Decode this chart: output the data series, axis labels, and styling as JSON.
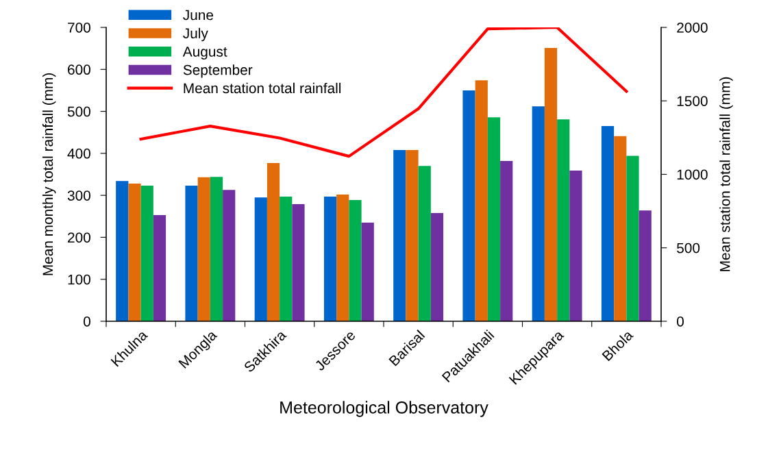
{
  "chart_data": {
    "type": "bar",
    "xlabel": "Meteorological Observatory",
    "ylabel": "Mean monthly total rainfall (mm)",
    "y2label": "Mean station total rainfall (mm)",
    "categories": [
      "Khulna",
      "Mongla",
      "Satkhira",
      "Jessore",
      "Barisal",
      "Patuakhali",
      "Khepupara",
      "Bhola"
    ],
    "series": [
      {
        "name": "June",
        "color": "#0066cc",
        "values": [
          334,
          323,
          295,
          297,
          408,
          550,
          512,
          465
        ]
      },
      {
        "name": "July",
        "color": "#e36c0a",
        "values": [
          328,
          343,
          377,
          302,
          408,
          574,
          651,
          441
        ]
      },
      {
        "name": "August",
        "color": "#00b050",
        "values": [
          323,
          344,
          297,
          289,
          370,
          486,
          481,
          394
        ]
      },
      {
        "name": "September",
        "color": "#7030a0",
        "values": [
          253,
          313,
          279,
          235,
          258,
          382,
          359,
          264
        ]
      },
      {
        "name": "Mean station total rainfall",
        "type": "line",
        "axis": "y2",
        "color": "#ff0000",
        "values": [
          1240,
          1328,
          1247,
          1123,
          1446,
          1990,
          2000,
          1565
        ]
      }
    ],
    "ylim": [
      0,
      700
    ],
    "yticks": [
      0,
      100,
      200,
      300,
      400,
      500,
      600,
      700
    ],
    "y2lim": [
      0,
      2000
    ],
    "y2ticks": [
      0,
      500,
      1000,
      1500,
      2000
    ],
    "grid": false,
    "legend": "top left",
    "marker": "none"
  }
}
